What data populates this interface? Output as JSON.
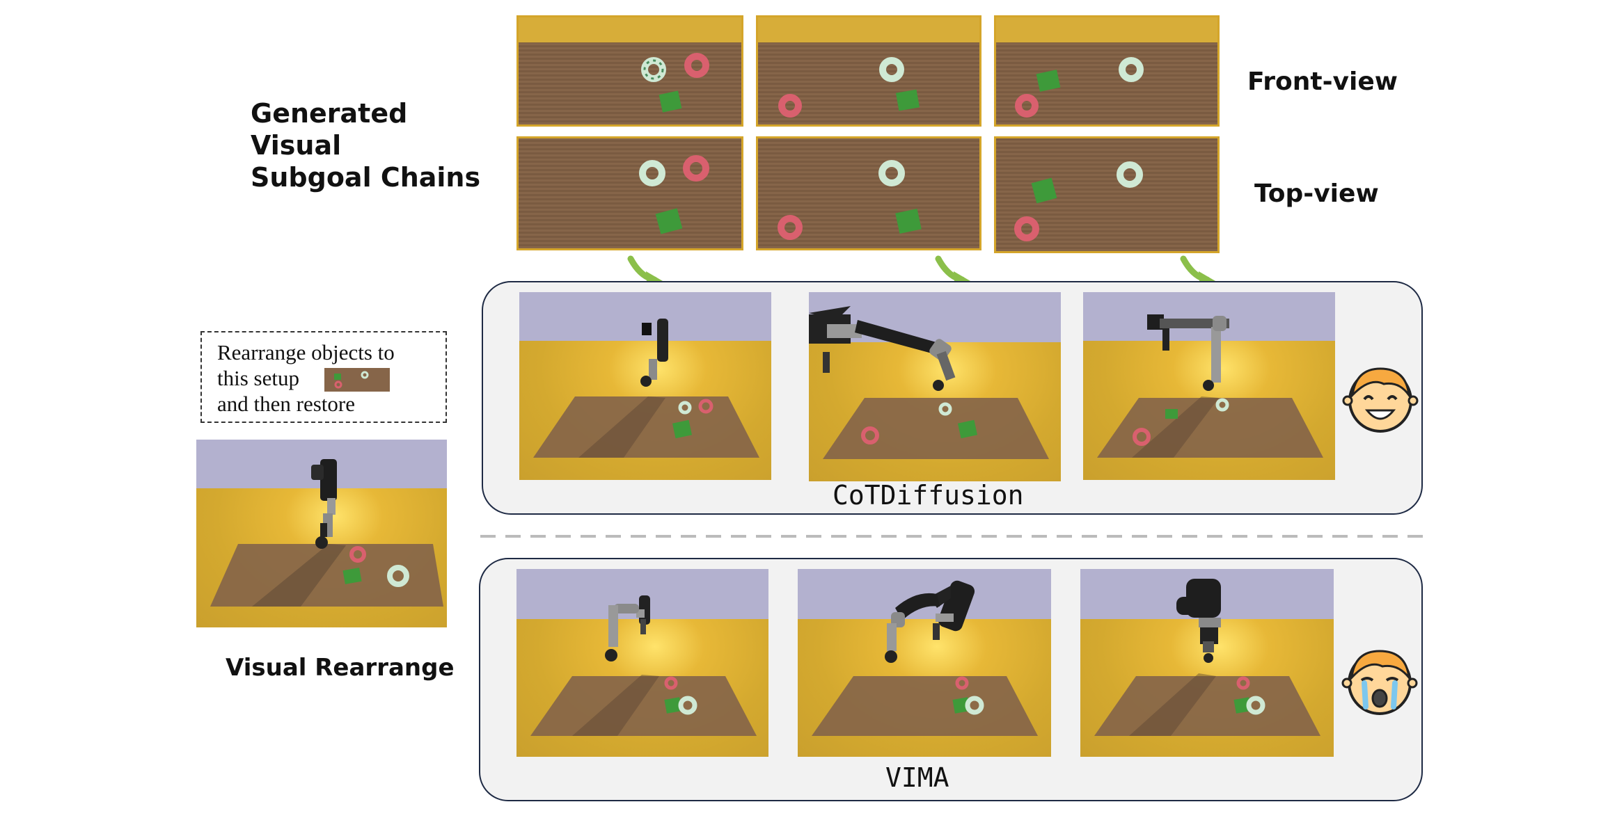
{
  "header": {
    "title_line1": "Generated Visual",
    "title_line2": "Subgoal Chains",
    "front_view": "Front-view",
    "top_view": "Top-view"
  },
  "task": {
    "instruction_line1": "Rearrange objects to",
    "instruction_line2": "this setup",
    "instruction_line3": "and then restore",
    "caption": "Visual Rearrange"
  },
  "methods": {
    "cotdiffusion": "CoTDiffusion",
    "vima": "VIMA"
  },
  "faces": {
    "success": "smiling-face-icon",
    "failure": "crying-face-icon"
  },
  "colors": {
    "wall": "#d7ad39",
    "table": "#866549",
    "sky": "#b3b1cf",
    "floor": "#d9ae32",
    "arrow": "#8bbf4a",
    "panel_border": "#1e2a44",
    "panel_fill": "#f2f2f2",
    "cube": "#3e9a3a",
    "donut_red": "#d9606e",
    "donut_green": "#cfe9d4"
  }
}
